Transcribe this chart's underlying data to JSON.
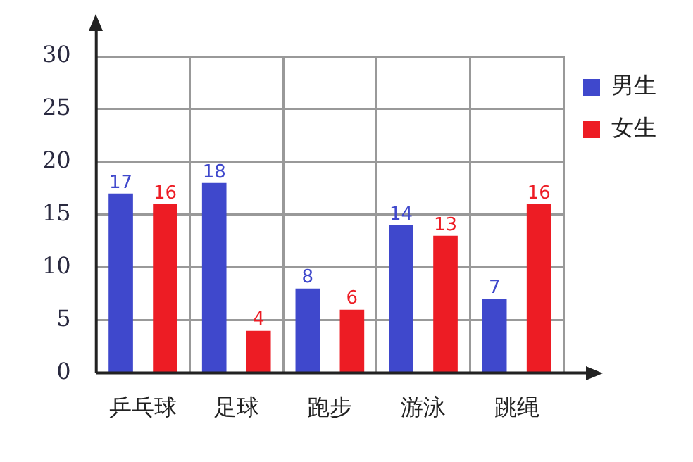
{
  "chart_data": {
    "type": "bar",
    "categories": [
      "乒乓球",
      "足球",
      "跑步",
      "游泳",
      "跳绳"
    ],
    "series": [
      {
        "name": "男生",
        "color": "#3f48cc",
        "values": [
          17,
          18,
          8,
          14,
          7
        ]
      },
      {
        "name": "女生",
        "color": "#ed1c24",
        "values": [
          16,
          4,
          6,
          13,
          16
        ]
      }
    ],
    "ylim": [
      0,
      30
    ],
    "yticks": [
      0,
      5,
      10,
      15,
      20,
      25,
      30
    ],
    "grid": true,
    "legend": "top right",
    "data_labels": true
  }
}
